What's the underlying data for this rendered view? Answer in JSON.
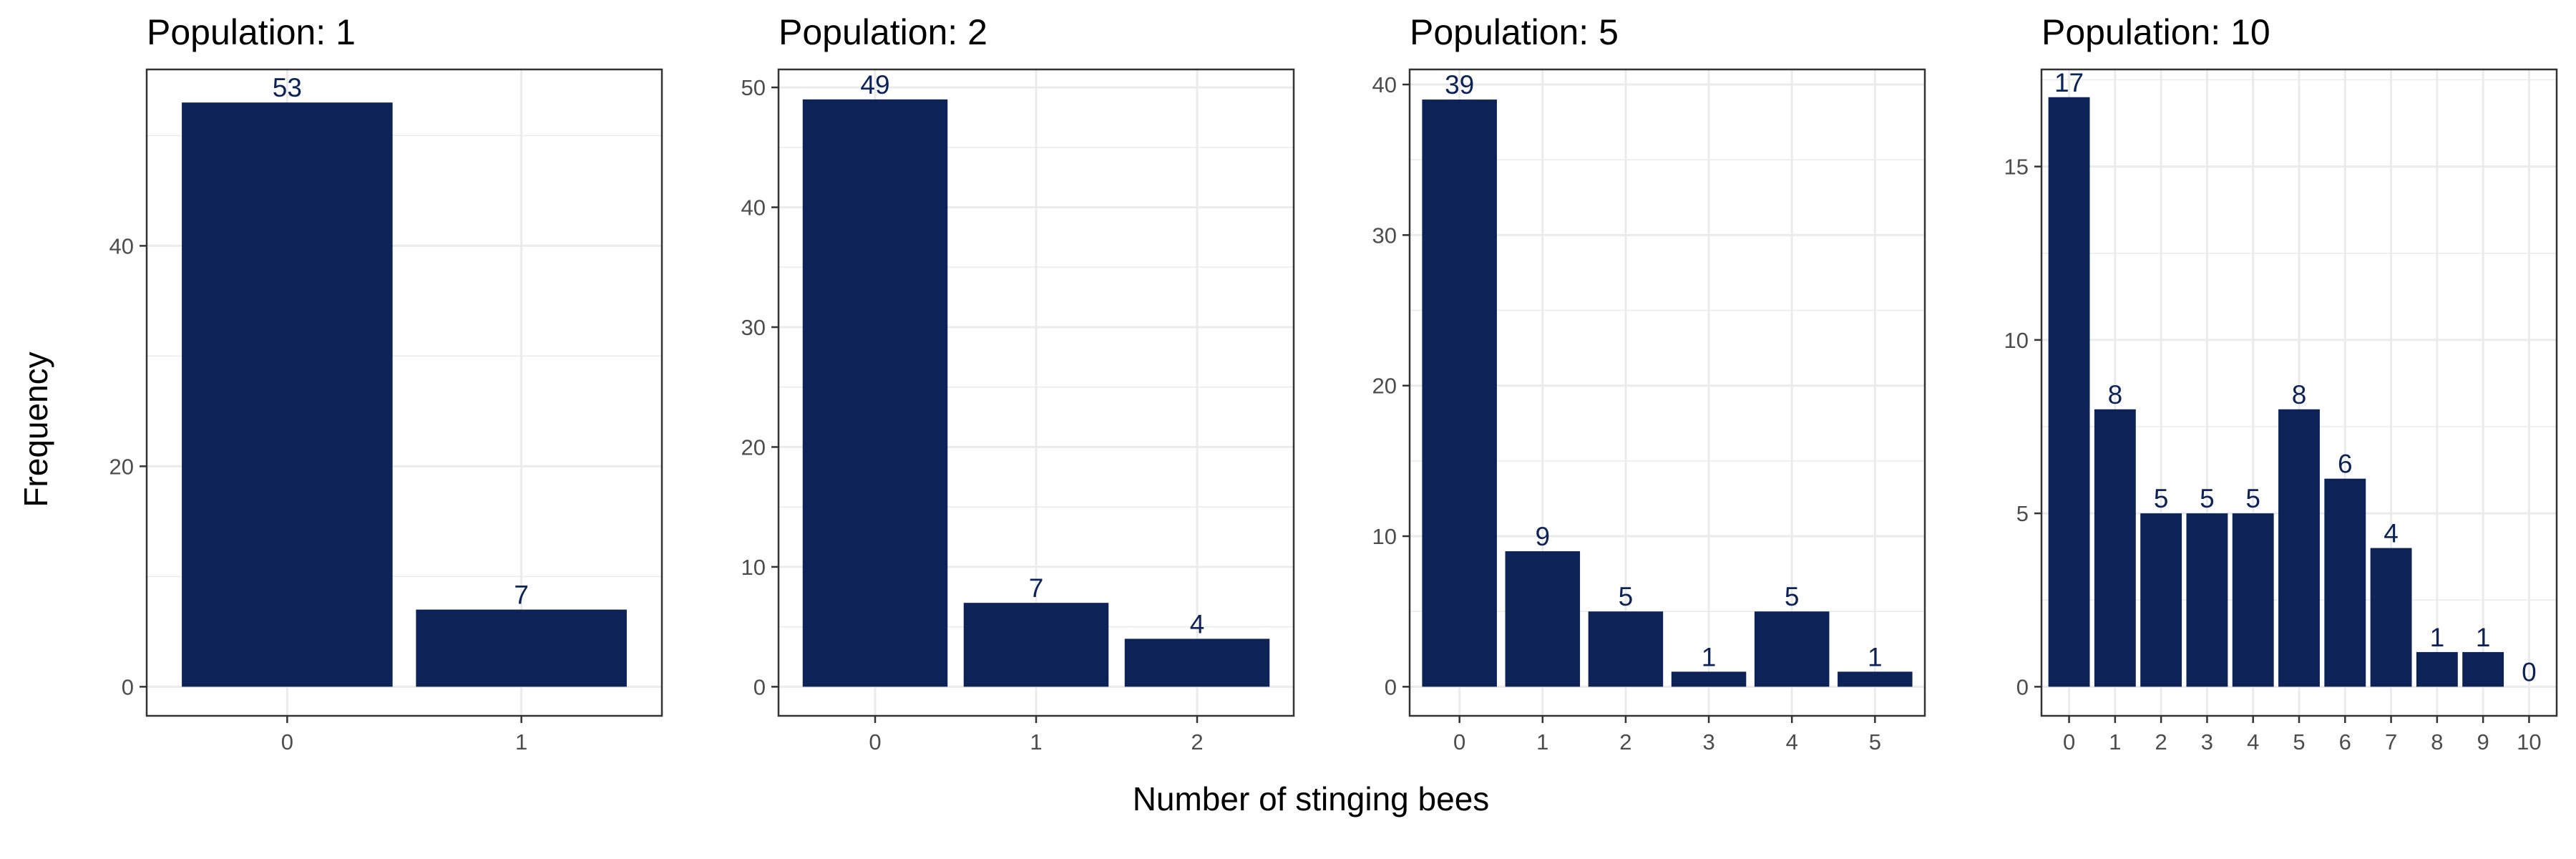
{
  "figure": {
    "xlabel": "Number of stinging bees",
    "ylabel": "Frequency",
    "bar_color": "#0d2357",
    "label_color": "#0d2357",
    "panel_border_color": "#333333",
    "grid_color": "#ebebeb"
  },
  "chart_data": [
    {
      "type": "bar",
      "title": "Population: 1",
      "categories": [
        "0",
        "1"
      ],
      "values": [
        53,
        7
      ],
      "ylim": [
        0,
        56
      ],
      "yticks": [
        0,
        20,
        40
      ]
    },
    {
      "type": "bar",
      "title": "Population: 2",
      "categories": [
        "0",
        "1",
        "2"
      ],
      "values": [
        49,
        7,
        4
      ],
      "ylim": [
        0,
        51.5
      ],
      "yticks": [
        0,
        10,
        20,
        30,
        40,
        50
      ]
    },
    {
      "type": "bar",
      "title": "Population: 5",
      "categories": [
        "0",
        "1",
        "2",
        "3",
        "4",
        "5"
      ],
      "values": [
        39,
        9,
        5,
        1,
        5,
        1
      ],
      "ylim": [
        0,
        41
      ],
      "yticks": [
        0,
        10,
        20,
        30,
        40
      ]
    },
    {
      "type": "bar",
      "title": "Population: 10",
      "categories": [
        "0",
        "1",
        "2",
        "3",
        "4",
        "5",
        "6",
        "7",
        "8",
        "9",
        "10"
      ],
      "values": [
        17,
        8,
        5,
        5,
        5,
        8,
        6,
        4,
        1,
        1,
        0
      ],
      "ylim": [
        0,
        17.8
      ],
      "yticks": [
        0,
        5,
        10,
        15
      ]
    }
  ]
}
